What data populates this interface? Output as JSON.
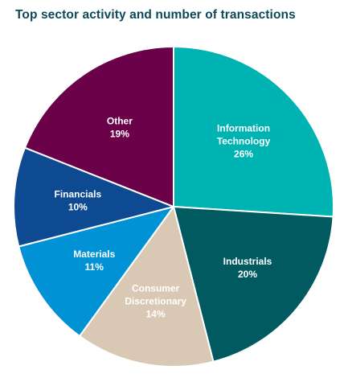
{
  "chart_data": {
    "type": "pie",
    "title": "Top sector activity and number of transactions",
    "slices": [
      {
        "label": "Information Technology",
        "label_lines": [
          "Information",
          "Technology"
        ],
        "value": 26,
        "value_text": "26%",
        "color": "#00b3b3"
      },
      {
        "label": "Industrials",
        "label_lines": [
          "Industrials"
        ],
        "value": 20,
        "value_text": "20%",
        "color": "#005a60"
      },
      {
        "label": "Consumer Discretionary",
        "label_lines": [
          "Consumer",
          "Discretionary"
        ],
        "value": 14,
        "value_text": "14%",
        "color": "#d9c8b4"
      },
      {
        "label": "Materials",
        "label_lines": [
          "Materials"
        ],
        "value": 11,
        "value_text": "11%",
        "color": "#0192d6"
      },
      {
        "label": "Financials",
        "label_lines": [
          "Financials"
        ],
        "value": 10,
        "value_text": "10%",
        "color": "#0d4a91"
      },
      {
        "label": "Other",
        "label_lines": [
          "Other"
        ],
        "value": 19,
        "value_text": "19%",
        "color": "#6b0148"
      }
    ],
    "start_angle_deg": 0,
    "direction": "clockwise",
    "legend": "none",
    "label_placement": "inside"
  }
}
